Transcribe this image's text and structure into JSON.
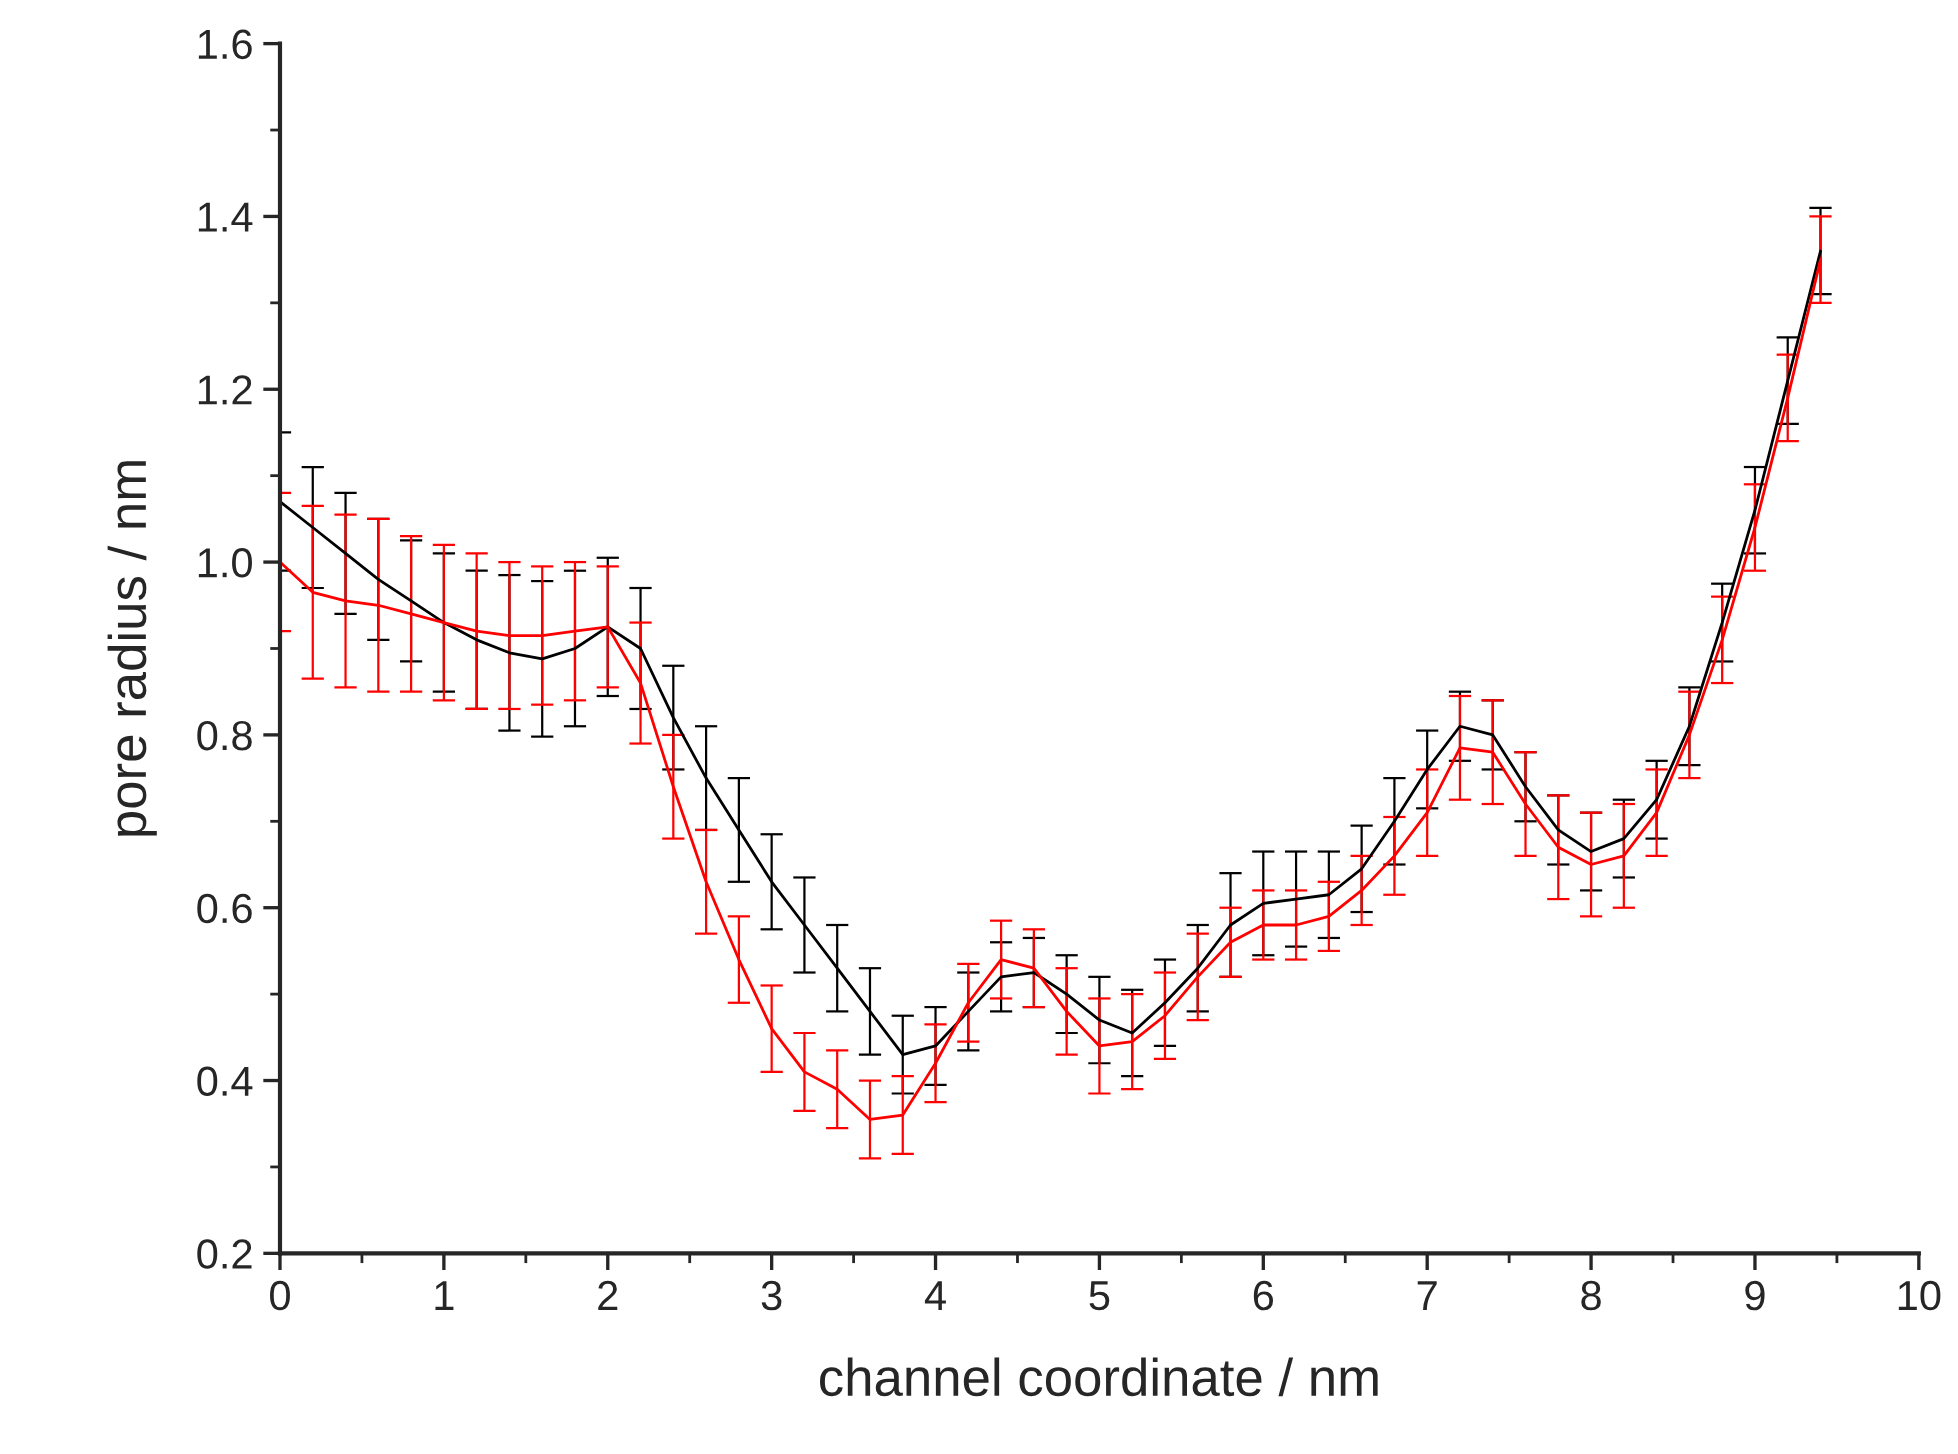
{
  "chart_data": {
    "type": "line",
    "xlabel": "channel coordinate / nm",
    "ylabel": "pore radius / nm",
    "x": [
      0,
      0.2,
      0.4,
      0.6,
      0.8,
      1.0,
      1.2,
      1.4,
      1.6,
      1.8,
      2.0,
      2.2,
      2.4,
      2.6,
      2.8,
      3.0,
      3.2,
      3.4,
      3.6,
      3.8,
      4.0,
      4.2,
      4.4,
      4.6,
      4.8,
      5.0,
      5.2,
      5.4,
      5.6,
      5.8,
      6.0,
      6.2,
      6.4,
      6.6,
      6.8,
      7.0,
      7.2,
      7.4,
      7.6,
      7.8,
      8.0,
      8.2,
      8.4,
      8.6,
      8.8,
      9.0,
      9.2,
      9.4
    ],
    "series": [
      {
        "color": "#000000",
        "values": [
          1.07,
          1.04,
          1.01,
          0.98,
          0.955,
          0.93,
          0.91,
          0.895,
          0.888,
          0.9,
          0.925,
          0.9,
          0.82,
          0.75,
          0.69,
          0.63,
          0.58,
          0.53,
          0.48,
          0.43,
          0.44,
          0.48,
          0.52,
          0.525,
          0.5,
          0.47,
          0.455,
          0.49,
          0.53,
          0.58,
          0.605,
          0.61,
          0.615,
          0.645,
          0.7,
          0.76,
          0.81,
          0.8,
          0.74,
          0.69,
          0.665,
          0.68,
          0.725,
          0.81,
          0.93,
          1.06,
          1.21,
          1.36
        ],
        "errors": [
          0.08,
          0.07,
          0.07,
          0.07,
          0.07,
          0.08,
          0.08,
          0.09,
          0.09,
          0.09,
          0.08,
          0.07,
          0.06,
          0.06,
          0.06,
          0.055,
          0.055,
          0.05,
          0.05,
          0.045,
          0.045,
          0.045,
          0.04,
          0.04,
          0.045,
          0.05,
          0.05,
          0.05,
          0.05,
          0.06,
          0.06,
          0.055,
          0.05,
          0.05,
          0.05,
          0.045,
          0.04,
          0.04,
          0.04,
          0.04,
          0.045,
          0.045,
          0.045,
          0.045,
          0.045,
          0.05,
          0.05,
          0.05
        ]
      },
      {
        "color": "#ff0000",
        "values": [
          1.0,
          0.965,
          0.955,
          0.95,
          0.94,
          0.93,
          0.92,
          0.915,
          0.915,
          0.92,
          0.925,
          0.86,
          0.74,
          0.63,
          0.54,
          0.46,
          0.41,
          0.39,
          0.355,
          0.36,
          0.42,
          0.49,
          0.54,
          0.53,
          0.48,
          0.44,
          0.445,
          0.475,
          0.52,
          0.56,
          0.58,
          0.58,
          0.59,
          0.62,
          0.66,
          0.71,
          0.785,
          0.78,
          0.72,
          0.67,
          0.65,
          0.66,
          0.71,
          0.8,
          0.91,
          1.04,
          1.19,
          1.35
        ],
        "errors": [
          0.08,
          0.1,
          0.1,
          0.1,
          0.09,
          0.09,
          0.09,
          0.085,
          0.08,
          0.08,
          0.07,
          0.07,
          0.06,
          0.06,
          0.05,
          0.05,
          0.045,
          0.045,
          0.045,
          0.045,
          0.045,
          0.045,
          0.045,
          0.045,
          0.05,
          0.055,
          0.055,
          0.05,
          0.05,
          0.04,
          0.04,
          0.04,
          0.04,
          0.04,
          0.045,
          0.05,
          0.06,
          0.06,
          0.06,
          0.06,
          0.06,
          0.06,
          0.05,
          0.05,
          0.05,
          0.05,
          0.05,
          0.05
        ]
      }
    ],
    "xlim": [
      0,
      10
    ],
    "xticks": [
      0,
      1,
      2,
      3,
      4,
      5,
      6,
      7,
      8,
      9,
      10
    ],
    "ylim": [
      0.2,
      1.6
    ],
    "yticks": [
      {
        "value": 0.2,
        "label": "0.2"
      },
      {
        "value": 0.4,
        "label": "0.4"
      },
      {
        "value": 0.6,
        "label": "0.6"
      },
      {
        "value": 0.8,
        "label": "0.8"
      },
      {
        "value": 1.0,
        "label": "1.0"
      },
      {
        "value": 1.2,
        "label": "1.2"
      },
      {
        "value": 1.4,
        "label": "1.4"
      },
      {
        "value": 1.6,
        "label": "1.6"
      }
    ],
    "grid": false,
    "legend": false,
    "marker": "none",
    "line_style": "solid"
  }
}
